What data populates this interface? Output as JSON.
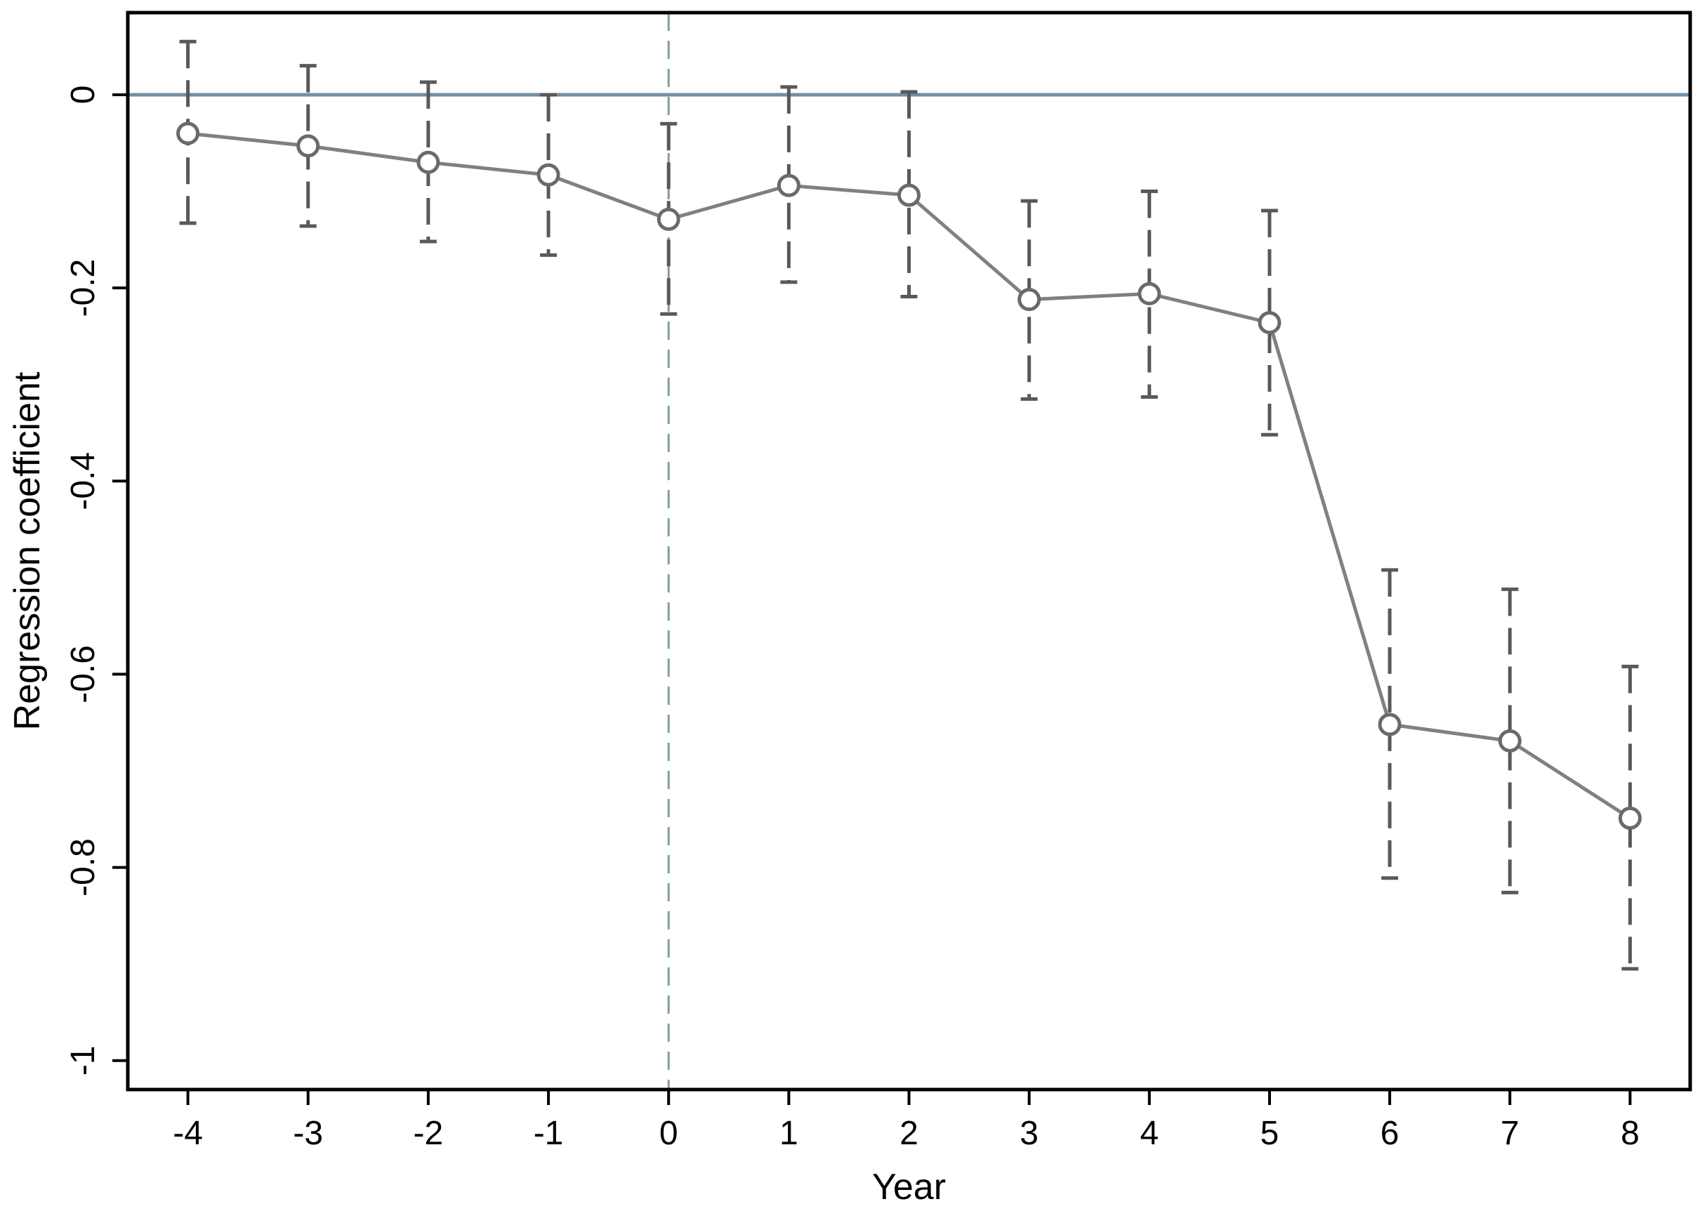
{
  "chart_data": {
    "type": "line",
    "title": "",
    "xlabel": "Year",
    "ylabel": "Regression coefficient",
    "x": [
      -4,
      -3,
      -2,
      -1,
      0,
      1,
      2,
      3,
      4,
      5,
      6,
      7,
      8
    ],
    "series": [
      {
        "values": [
          -0.04,
          -0.053,
          -0.07,
          -0.083,
          -0.129,
          -0.094,
          -0.104,
          -0.212,
          -0.206,
          -0.236,
          -0.652,
          -0.669,
          -0.749
        ],
        "ci_upper": [
          0.055,
          0.03,
          0.013,
          0.0,
          -0.03,
          0.008,
          0.003,
          -0.11,
          -0.1,
          -0.12,
          -0.492,
          -0.512,
          -0.592
        ],
        "ci_lower": [
          -0.133,
          -0.136,
          -0.152,
          -0.166,
          -0.227,
          -0.194,
          -0.209,
          -0.315,
          -0.313,
          -0.352,
          -0.811,
          -0.826,
          -0.905
        ]
      }
    ],
    "xlim": [
      -4.5,
      8.5
    ],
    "ylim": [
      -1.03,
      0.085
    ],
    "x_ticks": [
      "-4",
      "-3",
      "-2",
      "-1",
      "0",
      "1",
      "2",
      "3",
      "4",
      "5",
      "6",
      "7",
      "8"
    ],
    "y_ticks": [
      0,
      -0.2,
      -0.4,
      -0.6,
      -0.8,
      -1
    ],
    "y_tick_labels": [
      "0",
      "-0.2",
      "-0.4",
      "-0.6",
      "-0.8",
      "-1"
    ],
    "reference_lines": [
      {
        "axis": "y",
        "value": 0,
        "style": "solid",
        "color": "#6f8fa3"
      },
      {
        "axis": "x",
        "value": 0,
        "style": "dashed",
        "color": "#7f9f98"
      }
    ],
    "grid": false,
    "legend": "none",
    "colors": {
      "line": "#808080",
      "marker": "#6a6a6a",
      "error_bar": "#595959",
      "frame": "#000000"
    }
  }
}
